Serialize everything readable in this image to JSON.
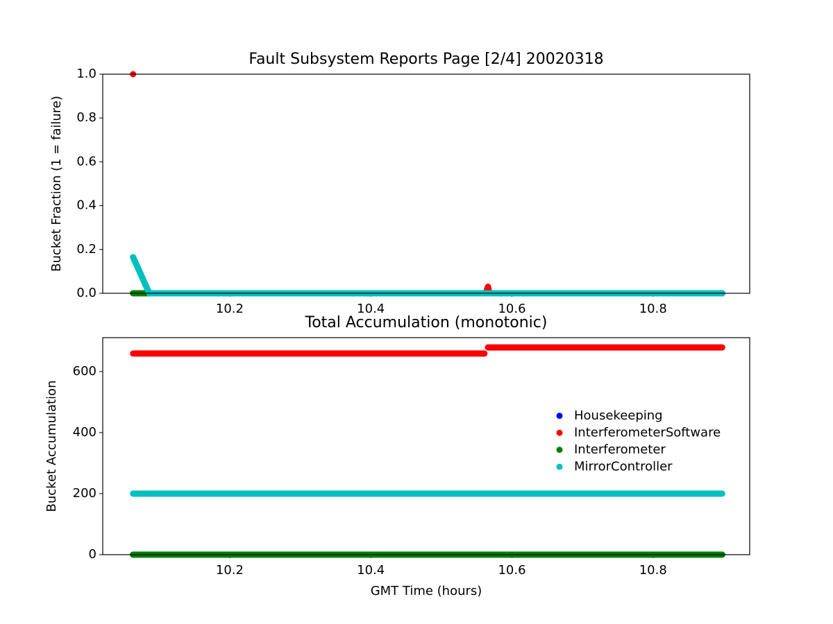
{
  "chart_data": [
    {
      "type": "line",
      "title": "Fault Subsystem Reports Page [2/4] 20020318",
      "y_label": "Bucket Fraction (1 = failure)",
      "xlim": [
        10.02,
        10.937
      ],
      "xticks": [
        10.2,
        10.4,
        10.6,
        10.8
      ],
      "ylim": [
        0,
        1
      ],
      "yticks": [
        {
          "value": 0,
          "label": "0.0"
        },
        {
          "value": 0.2,
          "label": "0.2"
        },
        {
          "value": 0.4,
          "label": "0.4"
        },
        {
          "value": 0.6,
          "label": "0.6"
        },
        {
          "value": 0.8,
          "label": "0.8"
        },
        {
          "value": 1,
          "label": "1.0"
        }
      ],
      "series": [
        {
          "name": "Housekeeping",
          "color": "#0000ff",
          "x": [
            10.063,
            10.898
          ],
          "values": [
            0,
            0
          ]
        },
        {
          "name": "InterferometerSoftware",
          "color": "#ff0000",
          "x": [
            10.063,
            10.065,
            10.066,
            10.563,
            10.566,
            10.568,
            10.898
          ],
          "values": [
            1.0,
            null,
            0,
            0,
            0.03,
            0,
            0
          ]
        },
        {
          "name": "Interferometer",
          "color": "#008000",
          "x": [
            10.063,
            10.898
          ],
          "values": [
            0,
            0
          ]
        },
        {
          "name": "MirrorController",
          "color": "#00bfbf",
          "x": [
            10.063,
            10.086,
            10.898
          ],
          "values": [
            0.165,
            0,
            0
          ]
        }
      ]
    },
    {
      "type": "line",
      "title": "Total Accumulation (monotonic)",
      "x_label": "GMT Time (hours)",
      "y_label": "Bucket Accumulation",
      "xlim": [
        10.02,
        10.937
      ],
      "xticks": [
        10.2,
        10.4,
        10.6,
        10.8
      ],
      "ylim": [
        0,
        711
      ],
      "yticks": [
        0,
        200,
        400,
        600
      ],
      "legend": "center right",
      "series": [
        {
          "name": "Housekeeping",
          "color": "#0000ff",
          "x": [
            10.063,
            10.898
          ],
          "values": [
            0,
            0
          ]
        },
        {
          "name": "InterferometerSoftware",
          "color": "#ff0000",
          "x": [
            10.063,
            10.561,
            10.563,
            10.566,
            10.898
          ],
          "values": [
            659,
            659,
            null,
            679,
            679
          ]
        },
        {
          "name": "Interferometer",
          "color": "#008000",
          "x": [
            10.063,
            10.898
          ],
          "values": [
            0,
            0
          ]
        },
        {
          "name": "MirrorController",
          "color": "#00bfbf",
          "x": [
            10.063,
            10.898
          ],
          "values": [
            200,
            200
          ]
        }
      ]
    }
  ]
}
